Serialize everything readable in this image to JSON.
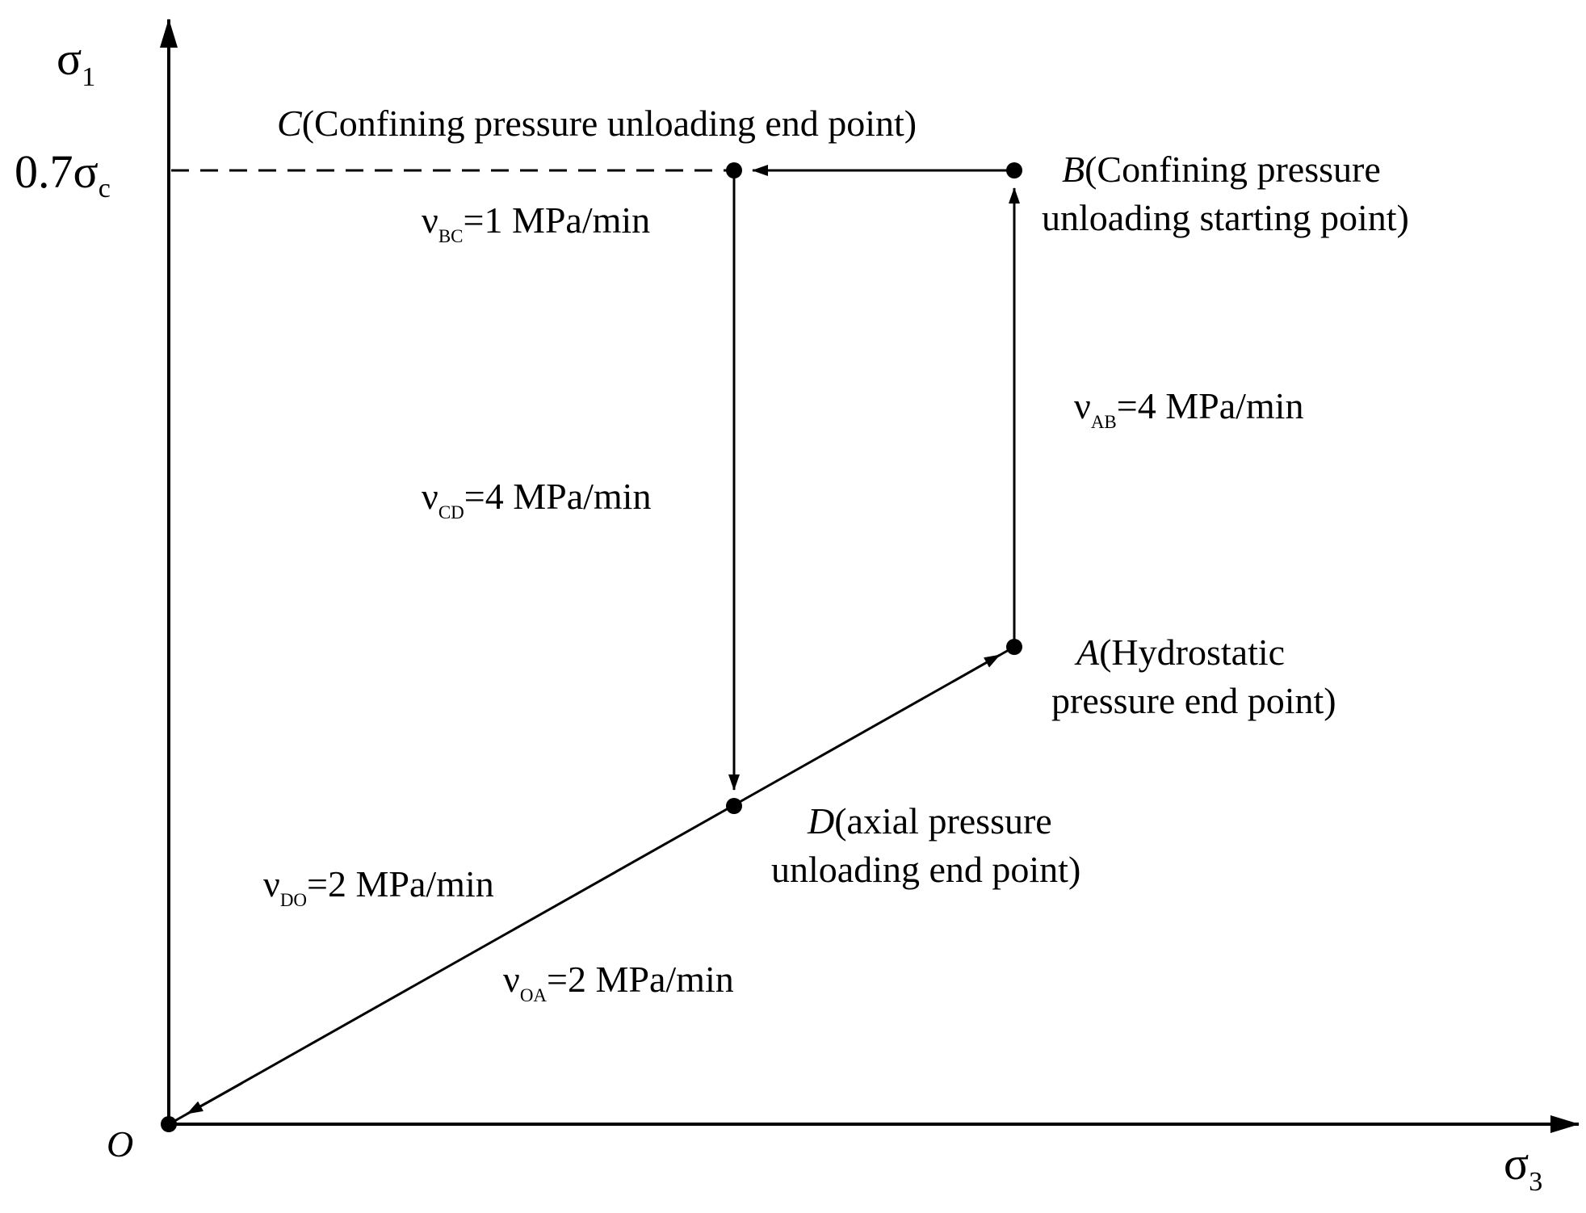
{
  "axes": {
    "y_symbol": "σ",
    "y_subscript": "1",
    "x_symbol": "σ",
    "x_subscript": "3",
    "origin": "O",
    "y_tick_coef": "0.7σ",
    "y_tick_sub": "c"
  },
  "points": {
    "A": {
      "letter": "A",
      "line1": "(Hydrostatic",
      "line2": "pressure end point)"
    },
    "B": {
      "letter": "B",
      "line1": "(Confining pressure",
      "line2": "unloading starting point)"
    },
    "C": {
      "letter": "C",
      "line1": "(Confining pressure unloading end point)"
    },
    "D": {
      "letter": "D",
      "line1": "(axial pressure",
      "line2": "unloading end point)"
    }
  },
  "rates": {
    "BC": {
      "symbol": "ν",
      "sub": "BC",
      "value": "=1 MPa/min"
    },
    "AB": {
      "symbol": "ν",
      "sub": "AB",
      "value": "=4 MPa/min"
    },
    "CD": {
      "symbol": "ν",
      "sub": "CD",
      "value": "=4 MPa/min"
    },
    "DO": {
      "symbol": "ν",
      "sub": "DO",
      "value": "=2 MPa/min"
    },
    "OA": {
      "symbol": "ν",
      "sub": "OA",
      "value": "=2 MPa/min"
    }
  }
}
